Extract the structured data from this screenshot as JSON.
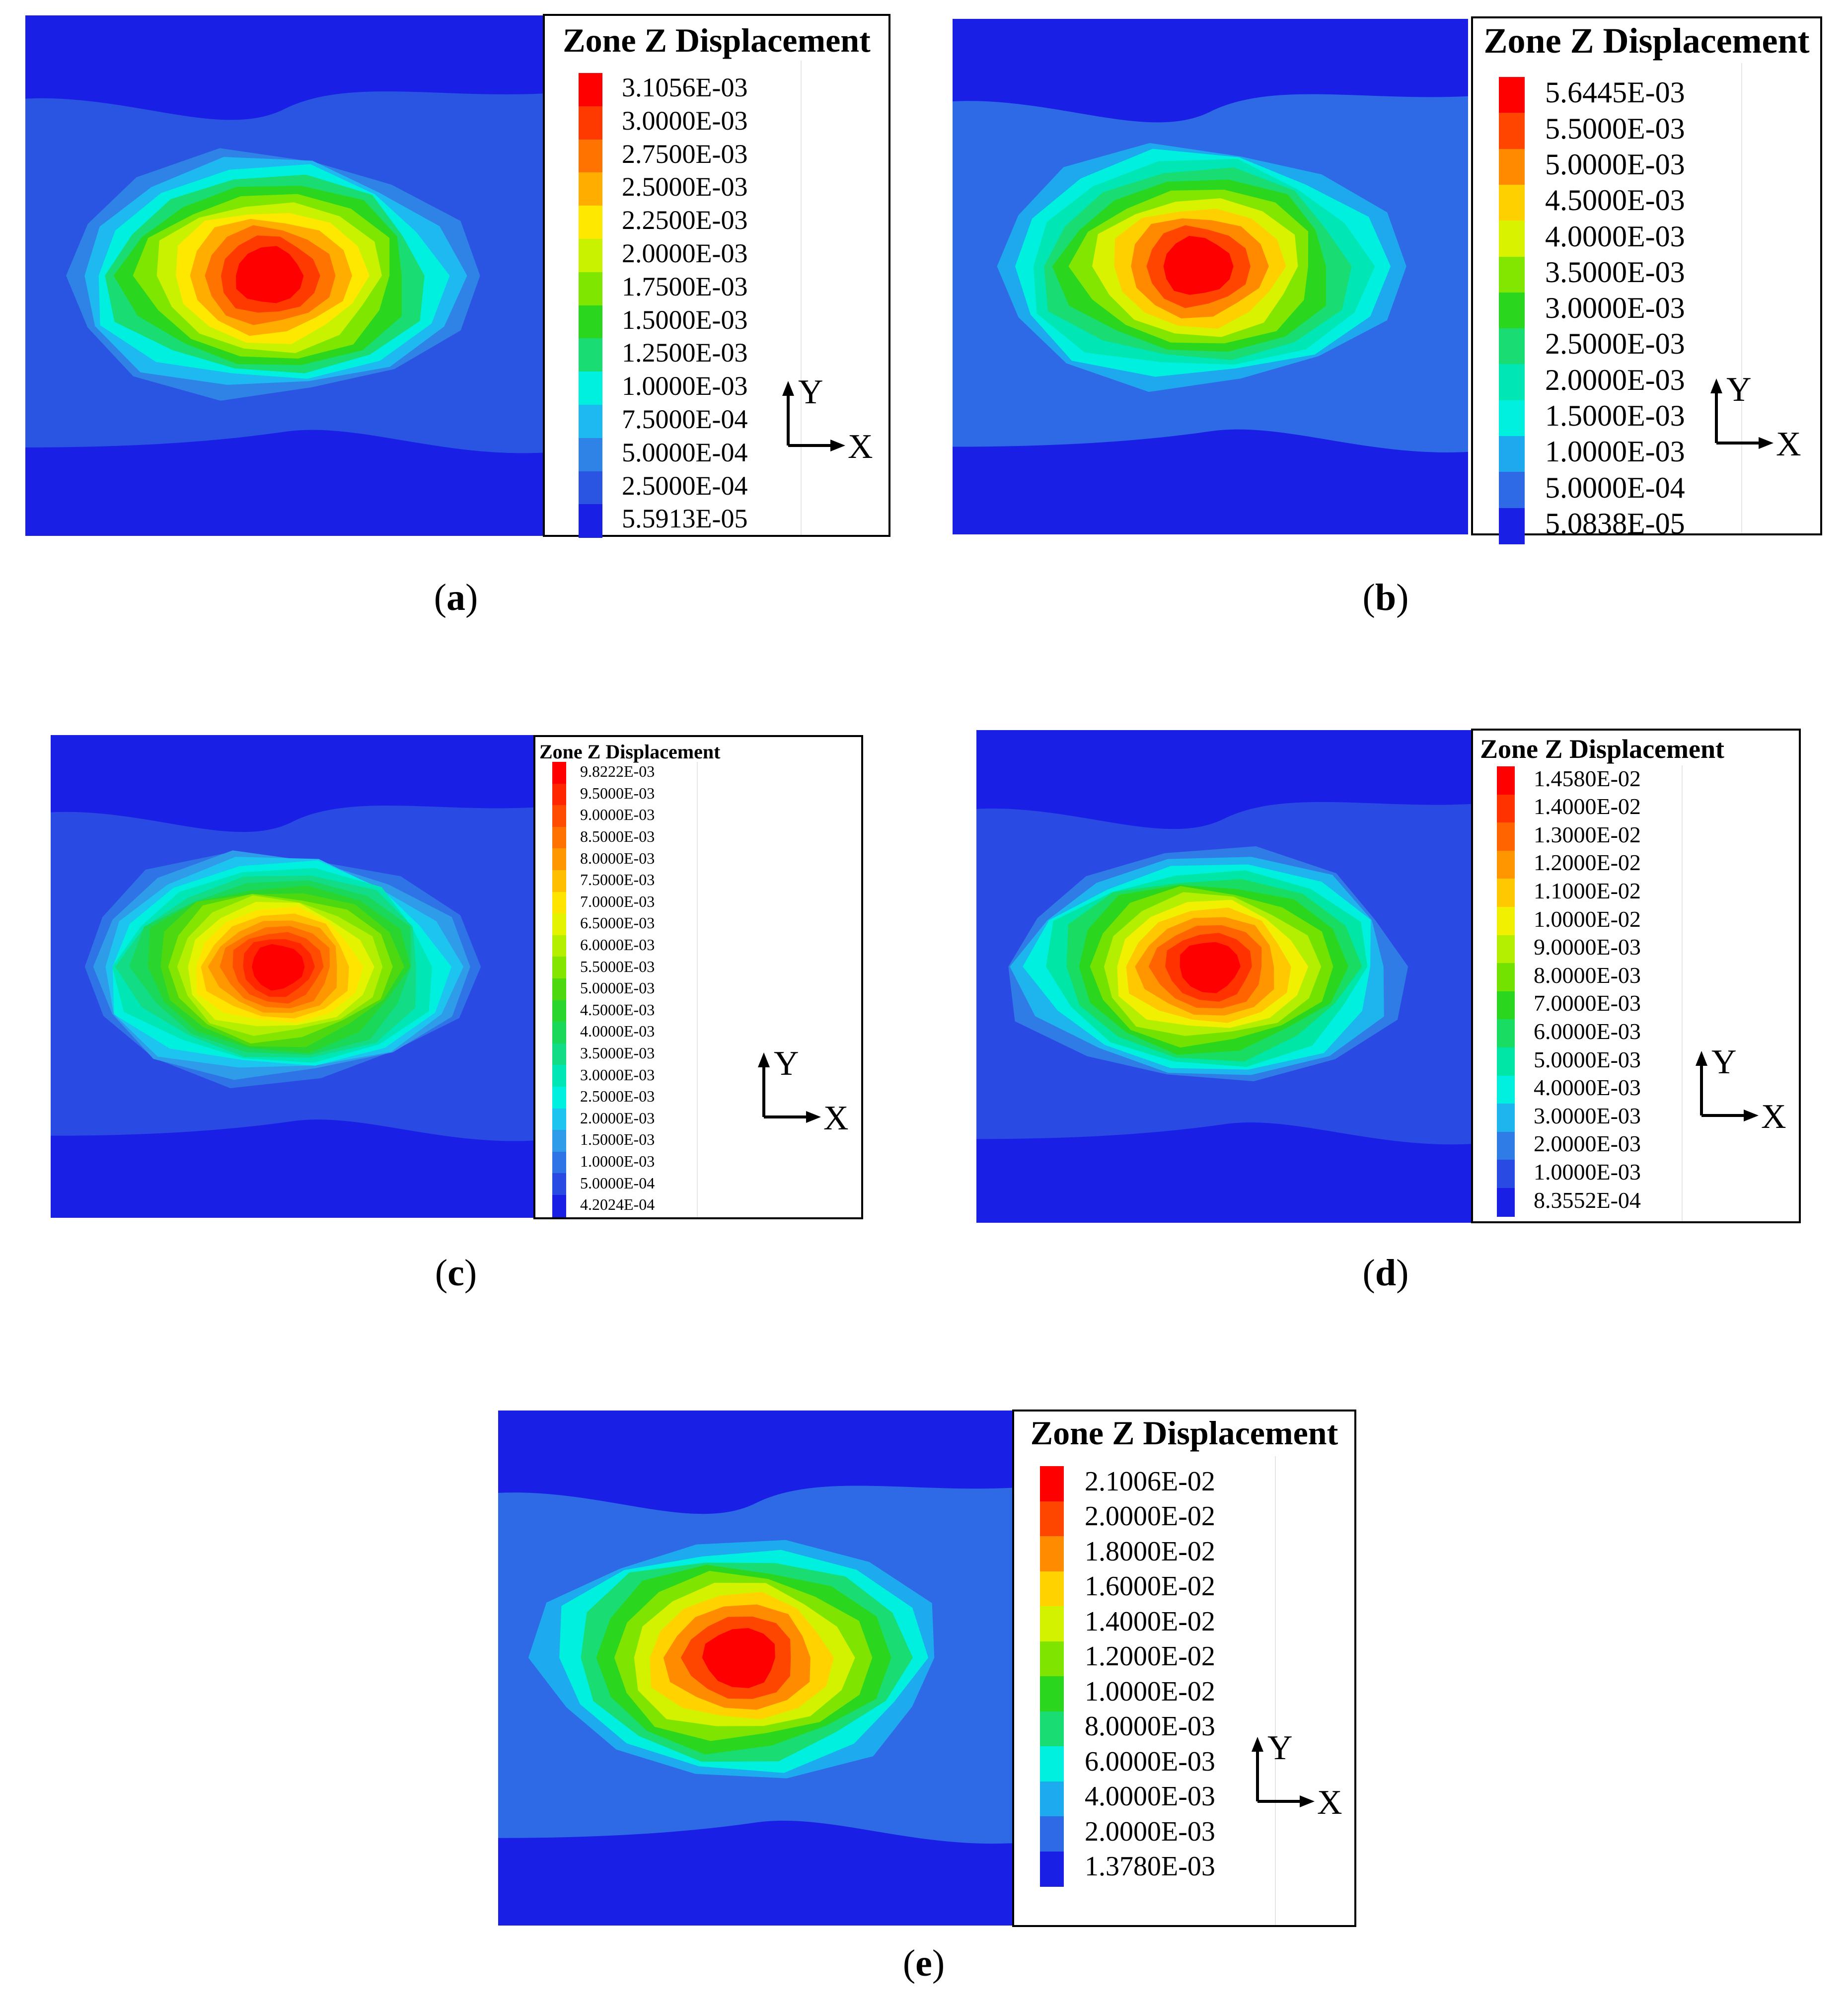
{
  "figures": [
    {
      "id": "a",
      "label": "a",
      "legend_title": "Zone Z Displacement",
      "levels": [
        "3.1056E-03",
        "3.0000E-03",
        "2.7500E-03",
        "2.5000E-03",
        "2.2500E-03",
        "2.0000E-03",
        "1.7500E-03",
        "1.5000E-03",
        "1.2500E-03",
        "1.0000E-03",
        "7.5000E-04",
        "5.0000E-04",
        "2.5000E-04",
        "5.5913E-05"
      ],
      "axis_x": "X",
      "axis_y": "Y"
    },
    {
      "id": "b",
      "label": "b",
      "legend_title": "Zone Z Displacement",
      "levels": [
        "5.6445E-03",
        "5.5000E-03",
        "5.0000E-03",
        "4.5000E-03",
        "4.0000E-03",
        "3.5000E-03",
        "3.0000E-03",
        "2.5000E-03",
        "2.0000E-03",
        "1.5000E-03",
        "1.0000E-03",
        "5.0000E-04",
        "5.0838E-05"
      ],
      "axis_x": "X",
      "axis_y": "Y"
    },
    {
      "id": "c",
      "label": "c",
      "legend_title": "Zone Z Displacement",
      "levels": [
        "9.8222E-03",
        "9.5000E-03",
        "9.0000E-03",
        "8.5000E-03",
        "8.0000E-03",
        "7.5000E-03",
        "7.0000E-03",
        "6.5000E-03",
        "6.0000E-03",
        "5.5000E-03",
        "5.0000E-03",
        "4.5000E-03",
        "4.0000E-03",
        "3.5000E-03",
        "3.0000E-03",
        "2.5000E-03",
        "2.0000E-03",
        "1.5000E-03",
        "1.0000E-03",
        "5.0000E-04",
        "4.2024E-04"
      ],
      "axis_x": "X",
      "axis_y": "Y"
    },
    {
      "id": "d",
      "label": "d",
      "legend_title": "Zone Z Displacement",
      "levels": [
        "1.4580E-02",
        "1.4000E-02",
        "1.3000E-02",
        "1.2000E-02",
        "1.1000E-02",
        "1.0000E-02",
        "9.0000E-03",
        "8.0000E-03",
        "7.0000E-03",
        "6.0000E-03",
        "5.0000E-03",
        "4.0000E-03",
        "3.0000E-03",
        "2.0000E-03",
        "1.0000E-03",
        "8.3552E-04"
      ],
      "axis_x": "X",
      "axis_y": "Y"
    },
    {
      "id": "e",
      "label": "e",
      "legend_title": "Zone Z Displacement",
      "levels": [
        "2.1006E-02",
        "2.0000E-02",
        "1.8000E-02",
        "1.6000E-02",
        "1.4000E-02",
        "1.2000E-02",
        "1.0000E-02",
        "8.0000E-03",
        "6.0000E-03",
        "4.0000E-03",
        "2.0000E-03",
        "1.3780E-03"
      ],
      "axis_x": "X",
      "axis_y": "Y"
    }
  ],
  "chart_data": [
    {
      "type": "heatmap",
      "title": "Zone Z Displacement",
      "panel": "a",
      "max": 0.0031056,
      "min": 5.5913e-05,
      "contour_levels": [
        0.0031056,
        0.003,
        0.00275,
        0.0025,
        0.00225,
        0.002,
        0.00175,
        0.0015,
        0.00125,
        0.001,
        0.00075,
        0.0005,
        0.00025,
        5.5913e-05
      ],
      "colors": [
        "#ff0000",
        "#ff3a00",
        "#ff7400",
        "#ffae00",
        "#ffe800",
        "#c9f200",
        "#7fe600",
        "#2ad61e",
        "#19dc72",
        "#00f0e0",
        "#1eb9f0",
        "#2f83e6",
        "#2a55e2",
        "#1a1fe6"
      ]
    },
    {
      "type": "heatmap",
      "title": "Zone Z Displacement",
      "panel": "b",
      "max": 0.0056445,
      "min": 5.0838e-05,
      "contour_levels": [
        0.0056445,
        0.0055,
        0.005,
        0.0045,
        0.004,
        0.0035,
        0.003,
        0.0025,
        0.002,
        0.0015,
        0.001,
        0.0005,
        5.0838e-05
      ],
      "colors": [
        "#ff0000",
        "#ff4500",
        "#ff8a00",
        "#ffd000",
        "#d8f200",
        "#83e600",
        "#2ad61e",
        "#19dc72",
        "#00e6b4",
        "#00f0e0",
        "#1ea8ee",
        "#2f6ae6",
        "#1a1fe6"
      ]
    },
    {
      "type": "heatmap",
      "title": "Zone Z Displacement",
      "panel": "c",
      "max": 0.0098222,
      "min": 0.00042024,
      "contour_levels": [
        0.0098222,
        0.0095,
        0.009,
        0.0085,
        0.008,
        0.0075,
        0.007,
        0.0065,
        0.006,
        0.0055,
        0.005,
        0.0045,
        0.004,
        0.0035,
        0.003,
        0.0025,
        0.002,
        0.0015,
        0.001,
        0.0005,
        0.00042024
      ],
      "colors": [
        "#ff0000",
        "#ff2600",
        "#ff4c00",
        "#ff7200",
        "#ff9800",
        "#ffbe00",
        "#ffe400",
        "#e4f400",
        "#b4ee00",
        "#84e600",
        "#4ed810",
        "#2ad62e",
        "#1ad85a",
        "#12dc86",
        "#00e6b4",
        "#00f0e0",
        "#1ec4f0",
        "#2f9cea",
        "#2f74e6",
        "#2a4ae4",
        "#1a1fe6"
      ]
    },
    {
      "type": "heatmap",
      "title": "Zone Z Displacement",
      "panel": "d",
      "max": 0.01458,
      "min": 0.00083552,
      "contour_levels": [
        0.01458,
        0.014,
        0.013,
        0.012,
        0.011,
        0.01,
        0.009,
        0.008,
        0.007,
        0.006,
        0.005,
        0.004,
        0.003,
        0.002,
        0.001,
        0.00083552
      ],
      "colors": [
        "#ff0000",
        "#ff3200",
        "#ff6400",
        "#ff9600",
        "#ffc800",
        "#f0f000",
        "#b4ee00",
        "#74e200",
        "#2ad61e",
        "#19dc62",
        "#00e6a6",
        "#00f0e0",
        "#1eb4ee",
        "#2f7ce6",
        "#2a4ae4",
        "#1a1fe6"
      ]
    },
    {
      "type": "heatmap",
      "title": "Zone Z Displacement",
      "panel": "e",
      "max": 0.021006,
      "min": 0.001378,
      "contour_levels": [
        0.021006,
        0.02,
        0.018,
        0.016,
        0.014,
        0.012,
        0.01,
        0.008,
        0.006,
        0.004,
        0.002,
        0.001378
      ],
      "colors": [
        "#ff0000",
        "#ff4600",
        "#ff8c00",
        "#ffd200",
        "#d2f200",
        "#7ee400",
        "#2ad61e",
        "#19dc72",
        "#00f0e0",
        "#1eaaee",
        "#2f6ae6",
        "#1a1fe6"
      ]
    }
  ]
}
